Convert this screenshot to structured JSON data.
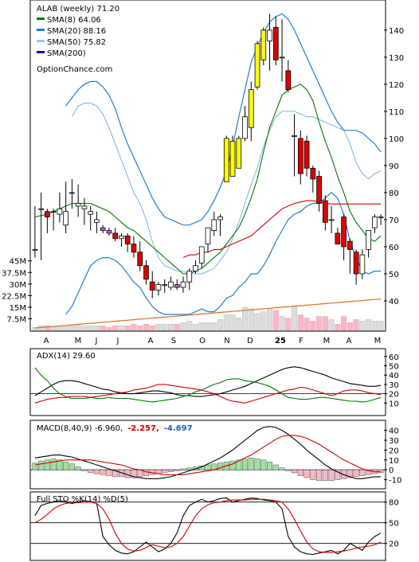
{
  "chart_data": [
    {
      "type": "candlestick",
      "title": "ALAB (weekly) 71.20",
      "legend": [
        {
          "label": "SMA(8) 64.06",
          "color": "#007a00"
        },
        {
          "label": "SMA(20) 88.16",
          "color": "#1f7fd0"
        },
        {
          "label": "SMA(50) 75.82",
          "color": "#8ec8f0"
        },
        {
          "label": "SMA(200)",
          "color": "#0000c0"
        }
      ],
      "watermark": "OptionChance.com",
      "y_ticks": [
        40,
        50,
        60,
        70,
        80,
        90,
        100,
        110,
        120,
        130,
        140
      ],
      "ylim": [
        30,
        147
      ],
      "x_labels": [
        "A",
        "M",
        "J",
        "J",
        "A",
        "S",
        "O",
        "N",
        "D",
        "25",
        "F",
        "M",
        "A",
        "M"
      ],
      "volume_ticks": [
        "45M",
        "37.5M",
        "30M",
        "22.5M",
        "15M",
        "7.5M"
      ],
      "volume_tick_values": [
        45,
        37.5,
        30,
        22.5,
        15,
        7.5
      ],
      "volume_max": 50,
      "candles": [
        [
          59,
          75,
          56,
          59
        ],
        [
          74,
          80,
          55,
          74
        ],
        [
          73,
          74,
          65,
          71
        ],
        [
          73,
          74,
          66,
          73
        ],
        [
          72,
          80,
          69,
          74
        ],
        [
          68,
          84,
          65,
          73
        ],
        [
          80,
          85,
          74,
          80
        ],
        [
          75,
          83,
          71,
          76
        ],
        [
          74,
          78,
          68,
          75
        ],
        [
          72,
          75,
          66,
          73
        ],
        [
          69,
          73,
          65,
          70
        ],
        [
          67,
          68,
          65,
          66
        ],
        [
          66,
          67,
          64,
          65
        ],
        [
          65,
          67,
          62,
          63
        ],
        [
          63,
          65,
          60,
          64
        ],
        [
          64,
          65,
          58,
          61
        ],
        [
          61,
          64,
          56,
          58
        ],
        [
          58,
          62,
          51,
          53
        ],
        [
          53,
          55,
          46,
          48
        ],
        [
          47,
          51,
          41,
          44
        ],
        [
          44,
          47,
          42,
          46
        ],
        [
          46,
          48,
          43,
          46
        ],
        [
          45,
          49,
          44,
          47
        ],
        [
          46,
          48,
          44,
          45
        ],
        [
          45,
          49,
          43,
          47
        ],
        [
          47,
          52,
          44,
          51
        ],
        [
          51,
          55,
          50,
          53
        ],
        [
          54,
          60,
          52,
          60
        ],
        [
          61,
          67,
          58,
          67
        ],
        [
          66,
          73,
          64,
          70
        ],
        [
          70,
          72,
          64,
          71
        ],
        [
          84,
          101,
          84,
          100
        ],
        [
          86,
          101,
          86,
          99
        ],
        [
          89,
          101,
          89,
          100
        ],
        [
          100,
          112,
          99,
          108
        ],
        [
          104,
          121,
          99,
          118
        ],
        [
          119,
          136,
          118,
          135
        ],
        [
          129,
          141,
          127,
          140
        ],
        [
          136,
          146,
          125,
          140
        ],
        [
          141,
          145,
          127,
          129
        ],
        [
          130,
          144,
          121,
          130
        ],
        [
          125,
          129,
          117,
          118
        ],
        [
          101,
          109,
          86,
          101
        ],
        [
          100,
          103,
          83,
          87
        ],
        [
          99,
          101,
          86,
          89
        ],
        [
          89,
          90,
          80,
          85
        ],
        [
          86,
          88,
          73,
          76
        ],
        [
          77,
          79,
          66,
          69
        ],
        [
          70,
          75,
          65,
          70
        ],
        [
          65,
          67,
          61,
          61
        ],
        [
          71,
          72,
          55,
          60
        ],
        [
          62,
          63,
          50,
          59
        ],
        [
          58,
          59,
          46,
          50
        ],
        [
          50,
          59,
          48,
          57
        ],
        [
          59,
          66,
          56,
          66
        ],
        [
          67,
          72,
          65,
          71
        ],
        [
          71,
          72,
          68,
          71
        ]
      ],
      "volume": [
        2,
        3,
        3,
        2,
        3,
        3,
        3,
        4,
        3,
        3,
        3,
        3,
        2,
        3,
        3,
        3,
        4,
        3,
        4,
        3,
        4,
        4,
        4,
        4,
        5,
        6,
        4,
        5,
        5,
        5,
        7,
        10,
        10,
        8,
        15,
        14,
        11,
        12,
        14,
        13,
        9,
        8,
        16,
        10,
        8,
        6,
        9,
        9,
        7,
        4,
        9,
        5,
        7,
        6,
        7,
        6,
        6
      ],
      "sma8": [
        71,
        71.5,
        72,
        73,
        74,
        75,
        76,
        76,
        76,
        76,
        75,
        74,
        73,
        71,
        69,
        67,
        66,
        64,
        62,
        60,
        58,
        56,
        54,
        52,
        50,
        50,
        51,
        52,
        54,
        56,
        58,
        61,
        64,
        67,
        72,
        78,
        85,
        95,
        104,
        110,
        116,
        118,
        119,
        120,
        118,
        114,
        106,
        99,
        93,
        86,
        80,
        73,
        69,
        66,
        63,
        62,
        64
      ],
      "sma20": [
        null,
        null,
        null,
        null,
        null,
        null,
        108,
        112,
        113,
        113,
        112,
        109,
        104,
        98,
        92,
        86,
        80,
        76,
        70,
        62,
        56,
        53,
        52,
        51,
        51,
        50,
        50,
        50,
        51,
        52,
        55,
        58,
        63,
        69,
        76,
        83,
        89,
        97,
        103,
        108,
        110,
        110,
        110,
        109,
        108,
        108,
        107,
        106,
        105,
        104,
        103,
        98,
        91,
        87,
        85,
        87,
        88
      ],
      "sma50": [
        null,
        null,
        null,
        null,
        null,
        null,
        null,
        null,
        null,
        null,
        null,
        null,
        null,
        null,
        null,
        null,
        null,
        null,
        null,
        null,
        null,
        null,
        null,
        null,
        56,
        57,
        57,
        58,
        58,
        59,
        59,
        60,
        61,
        62,
        63,
        64,
        66,
        68,
        70,
        72,
        74,
        75,
        76,
        76.5,
        77,
        77,
        76.5,
        76,
        75.8,
        75.8,
        75.8,
        75.8,
        75.8,
        75.8,
        75.8,
        75.8,
        75.8
      ],
      "bb_upper": [
        null,
        null,
        null,
        null,
        null,
        112,
        115,
        118,
        120,
        121,
        121,
        119,
        116,
        111,
        104,
        98,
        93,
        88,
        83,
        78,
        74,
        71,
        70,
        69,
        68,
        68,
        69,
        70,
        73,
        77,
        82,
        88,
        97,
        108,
        118,
        128,
        134,
        139,
        143,
        145,
        146,
        144,
        140,
        135,
        130,
        125,
        120,
        115,
        110,
        106,
        103,
        103,
        103,
        102,
        100,
        98,
        95
      ],
      "bb_lower": [
        null,
        null,
        null,
        null,
        null,
        35,
        38,
        43,
        48,
        53,
        55,
        56,
        56,
        55,
        53,
        50,
        47,
        45,
        41,
        38,
        36,
        35,
        35,
        35,
        35,
        35,
        36,
        37,
        36,
        36,
        38,
        41,
        42,
        45,
        47,
        50,
        50,
        53,
        57,
        62,
        66,
        70,
        72,
        73,
        75,
        76,
        76,
        78,
        80,
        78,
        72,
        62,
        56,
        51,
        50,
        51,
        51
      ]
    },
    {
      "type": "line",
      "title": "ADX(14) 29.60",
      "y_ticks": [
        10,
        20,
        30,
        40,
        50,
        60
      ],
      "ylim": [
        0,
        65
      ],
      "series": [
        {
          "name": "ADX",
          "color": "#000000",
          "values": [
            18,
            22,
            26,
            30,
            33,
            34,
            34,
            33,
            31,
            29,
            27,
            25,
            24,
            22,
            21,
            20,
            20,
            21,
            22,
            23,
            23,
            22,
            21,
            19,
            18,
            18,
            17,
            17,
            18,
            19,
            20,
            22,
            24,
            26,
            28,
            31,
            34,
            37,
            40,
            43,
            46,
            48,
            49,
            48,
            46,
            44,
            42,
            40,
            37,
            35,
            33,
            31,
            30,
            29,
            28,
            28,
            29
          ]
        },
        {
          "name": "+DI",
          "color": "#007a00",
          "values": [
            48,
            40,
            34,
            26,
            20,
            17,
            15,
            15,
            15,
            16,
            15,
            15,
            16,
            15,
            15,
            15,
            14,
            13,
            12,
            11,
            12,
            13,
            14,
            15,
            17,
            19,
            22,
            24,
            27,
            30,
            32,
            35,
            36,
            36,
            34,
            33,
            32,
            30,
            28,
            24,
            20,
            16,
            15,
            14,
            14,
            15,
            16,
            16,
            15,
            14,
            13,
            12,
            12,
            11,
            12,
            14,
            16
          ]
        },
        {
          "name": "-DI",
          "color": "#d00000",
          "values": [
            10,
            12,
            14,
            15,
            16,
            16,
            17,
            17,
            17,
            16,
            17,
            18,
            19,
            20,
            21,
            22,
            24,
            25,
            26,
            28,
            30,
            30,
            29,
            28,
            27,
            26,
            25,
            24,
            22,
            20,
            17,
            14,
            12,
            11,
            10,
            12,
            14,
            16,
            18,
            20,
            22,
            24,
            25,
            27,
            26,
            24,
            22,
            20,
            18,
            20,
            23,
            24,
            24,
            23,
            21,
            20,
            19
          ]
        }
      ]
    },
    {
      "type": "macd",
      "title": "MACD(8,40,9) -6.960,",
      "labels": [
        "-2.257,",
        "-4.697"
      ],
      "label_colors": [
        "#d00000",
        "#1f5fbf"
      ],
      "y_ticks": [
        -10,
        0,
        10,
        20,
        30,
        40
      ],
      "ylim": [
        -16,
        47
      ],
      "macd": [
        12,
        13,
        14,
        15,
        15,
        14,
        13,
        11,
        9,
        7,
        5,
        3,
        1,
        -1,
        -3,
        -5,
        -7,
        -8,
        -9,
        -9,
        -9,
        -8,
        -7,
        -5,
        -3,
        -1,
        1,
        3,
        6,
        9,
        12,
        16,
        20,
        25,
        30,
        35,
        40,
        43,
        44,
        43,
        40,
        36,
        31,
        26,
        20,
        15,
        10,
        5,
        1,
        -2,
        -5,
        -7,
        -9,
        -9,
        -8,
        -7,
        -7
      ],
      "signal": [
        5,
        6,
        7,
        8,
        9,
        10,
        10,
        10,
        10,
        10,
        9,
        8,
        7,
        6,
        5,
        3,
        1,
        0,
        -2,
        -3,
        -4,
        -5,
        -5,
        -5,
        -5,
        -4,
        -3,
        -2,
        -1,
        0,
        2,
        4,
        6,
        9,
        12,
        15,
        19,
        23,
        27,
        31,
        34,
        35,
        35,
        34,
        32,
        29,
        26,
        22,
        18,
        14,
        10,
        7,
        4,
        1,
        -1,
        -2,
        -2
      ],
      "histogram": [
        7,
        9,
        10,
        11,
        10,
        8,
        6,
        3,
        -1,
        -3,
        -4,
        -5,
        -6,
        -7,
        -7,
        -8,
        -8,
        -7,
        -6,
        -5,
        -4,
        -3,
        -2,
        -1,
        1,
        2,
        3,
        4,
        5,
        6,
        7,
        8,
        9,
        10,
        11,
        12,
        11,
        10,
        8,
        5,
        2,
        -1,
        -3,
        -6,
        -8,
        -10,
        -11,
        -11,
        -11,
        -10,
        -9,
        -8,
        -7,
        -6,
        -5,
        -4,
        -3
      ]
    },
    {
      "type": "line",
      "title": "Full STO %K(14) %D(5)",
      "y_ticks": [
        20,
        50,
        80
      ],
      "ylim": [
        0,
        90
      ],
      "series": [
        {
          "name": "%K",
          "color": "#000000",
          "values": [
            60,
            75,
            78,
            80,
            82,
            80,
            78,
            80,
            82,
            80,
            78,
            30,
            18,
            10,
            6,
            5,
            8,
            15,
            22,
            15,
            8,
            12,
            20,
            35,
            60,
            75,
            80,
            84,
            80,
            82,
            85,
            86,
            80,
            82,
            84,
            86,
            85,
            83,
            82,
            80,
            70,
            30,
            15,
            8,
            5,
            4,
            6,
            8,
            10,
            5,
            10,
            20,
            15,
            10,
            22,
            30,
            35
          ]
        },
        {
          "name": "%D",
          "color": "#d00000",
          "values": [
            50,
            55,
            62,
            70,
            75,
            78,
            79,
            79,
            80,
            80,
            78,
            70,
            55,
            35,
            20,
            12,
            9,
            10,
            14,
            18,
            16,
            14,
            15,
            20,
            30,
            45,
            60,
            70,
            76,
            79,
            80,
            82,
            83,
            83,
            83,
            84,
            84,
            84,
            83,
            82,
            80,
            70,
            55,
            38,
            22,
            12,
            8,
            7,
            7,
            8,
            9,
            11,
            13,
            15,
            16,
            18,
            22
          ]
        }
      ]
    }
  ]
}
